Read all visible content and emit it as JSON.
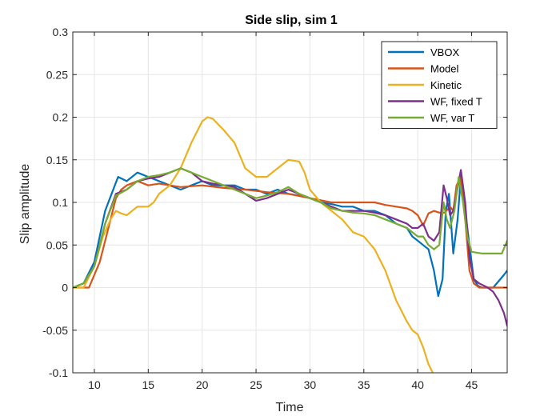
{
  "chart_data": {
    "type": "line",
    "title": "Side slip, sim 1",
    "xlabel": "Time",
    "ylabel": "Slip amplitude",
    "xlim": [
      8,
      48.3
    ],
    "ylim": [
      -0.1,
      0.3
    ],
    "xticks": [
      10,
      15,
      20,
      25,
      30,
      35,
      40,
      45
    ],
    "yticks": [
      -0.1,
      -0.05,
      0,
      0.05,
      0.1,
      0.15,
      0.2,
      0.25,
      0.3
    ],
    "grid": true,
    "legend_position": "top-right",
    "series": [
      {
        "name": "VBOX",
        "color": "#0072BD",
        "points": [
          [
            8,
            0
          ],
          [
            9,
            0.005
          ],
          [
            10,
            0.03
          ],
          [
            11,
            0.09
          ],
          [
            11.6,
            0.11
          ],
          [
            12.2,
            0.13
          ],
          [
            13,
            0.125
          ],
          [
            14,
            0.135
          ],
          [
            15,
            0.13
          ],
          [
            16,
            0.125
          ],
          [
            17,
            0.12
          ],
          [
            18,
            0.115
          ],
          [
            19,
            0.12
          ],
          [
            20,
            0.125
          ],
          [
            21,
            0.12
          ],
          [
            22,
            0.12
          ],
          [
            23,
            0.12
          ],
          [
            24,
            0.115
          ],
          [
            25,
            0.115
          ],
          [
            26,
            0.11
          ],
          [
            27,
            0.115
          ],
          [
            28,
            0.11
          ],
          [
            29,
            0.108
          ],
          [
            30,
            0.105
          ],
          [
            31,
            0.1
          ],
          [
            32,
            0.098
          ],
          [
            33,
            0.095
          ],
          [
            34,
            0.095
          ],
          [
            35,
            0.09
          ],
          [
            36,
            0.09
          ],
          [
            37,
            0.085
          ],
          [
            38,
            0.075
          ],
          [
            39,
            0.07
          ],
          [
            39.5,
            0.06
          ],
          [
            40,
            0.055
          ],
          [
            40.5,
            0.05
          ],
          [
            41,
            0.045
          ],
          [
            41.5,
            0.02
          ],
          [
            41.9,
            -0.01
          ],
          [
            42.3,
            0.01
          ],
          [
            42.6,
            0.09
          ],
          [
            42.9,
            0.11
          ],
          [
            43.3,
            0.04
          ],
          [
            43.7,
            0.08
          ],
          [
            44,
            0.13
          ],
          [
            44.4,
            0.09
          ],
          [
            44.8,
            0.05
          ],
          [
            45.2,
            0.01
          ],
          [
            45.6,
            0.002
          ],
          [
            46,
            0
          ],
          [
            47,
            0
          ],
          [
            48,
            0.015
          ],
          [
            48.3,
            0.02
          ]
        ]
      },
      {
        "name": "Model",
        "color": "#D95319",
        "points": [
          [
            8,
            0
          ],
          [
            9.5,
            0
          ],
          [
            10.5,
            0.03
          ],
          [
            11.5,
            0.08
          ],
          [
            12,
            0.105
          ],
          [
            12.5,
            0.115
          ],
          [
            13,
            0.12
          ],
          [
            14,
            0.125
          ],
          [
            15,
            0.12
          ],
          [
            16,
            0.122
          ],
          [
            18,
            0.118
          ],
          [
            20,
            0.12
          ],
          [
            22,
            0.117
          ],
          [
            24,
            0.115
          ],
          [
            26,
            0.112
          ],
          [
            28,
            0.11
          ],
          [
            30,
            0.105
          ],
          [
            32,
            0.1
          ],
          [
            34,
            0.1
          ],
          [
            36,
            0.1
          ],
          [
            37,
            0.097
          ],
          [
            38,
            0.095
          ],
          [
            39,
            0.093
          ],
          [
            39.5,
            0.09
          ],
          [
            40,
            0.085
          ],
          [
            40.5,
            0.073
          ],
          [
            41,
            0.087
          ],
          [
            41.5,
            0.09
          ],
          [
            42,
            0.088
          ],
          [
            42.5,
            0.088
          ],
          [
            43,
            0.095
          ],
          [
            43.3,
            0.09
          ],
          [
            43.6,
            0.12
          ],
          [
            44,
            0.13
          ],
          [
            44.4,
            0.08
          ],
          [
            44.8,
            0.02
          ],
          [
            45.2,
            0.005
          ],
          [
            45.7,
            0
          ],
          [
            46,
            0
          ],
          [
            47,
            0
          ],
          [
            48.3,
            0
          ]
        ]
      },
      {
        "name": "Kinetic",
        "color": "#EDB120",
        "points": [
          [
            8,
            0
          ],
          [
            9,
            0
          ],
          [
            10,
            0.025
          ],
          [
            10.8,
            0.06
          ],
          [
            11.5,
            0.08
          ],
          [
            12,
            0.09
          ],
          [
            12.5,
            0.087
          ],
          [
            13,
            0.085
          ],
          [
            13.5,
            0.09
          ],
          [
            14,
            0.095
          ],
          [
            15,
            0.095
          ],
          [
            15.5,
            0.1
          ],
          [
            16,
            0.11
          ],
          [
            17,
            0.12
          ],
          [
            18,
            0.14
          ],
          [
            19,
            0.17
          ],
          [
            20,
            0.195
          ],
          [
            20.5,
            0.2
          ],
          [
            21,
            0.198
          ],
          [
            22,
            0.185
          ],
          [
            23,
            0.17
          ],
          [
            24,
            0.14
          ],
          [
            25,
            0.13
          ],
          [
            26,
            0.13
          ],
          [
            27,
            0.14
          ],
          [
            28,
            0.15
          ],
          [
            29,
            0.148
          ],
          [
            29.5,
            0.135
          ],
          [
            30,
            0.115
          ],
          [
            31,
            0.1
          ],
          [
            32,
            0.09
          ],
          [
            33,
            0.08
          ],
          [
            34,
            0.065
          ],
          [
            35,
            0.06
          ],
          [
            36,
            0.045
          ],
          [
            37,
            0.02
          ],
          [
            38,
            -0.015
          ],
          [
            39,
            -0.04
          ],
          [
            39.5,
            -0.05
          ],
          [
            40,
            -0.055
          ],
          [
            40.5,
            -0.07
          ],
          [
            41,
            -0.09
          ],
          [
            41.4,
            -0.1
          ]
        ]
      },
      {
        "name": "WF, fixed T",
        "color": "#7E2F8E",
        "points": [
          [
            8,
            0
          ],
          [
            9,
            0.005
          ],
          [
            10,
            0.025
          ],
          [
            11,
            0.075
          ],
          [
            12,
            0.11
          ],
          [
            13,
            0.115
          ],
          [
            14,
            0.125
          ],
          [
            15,
            0.128
          ],
          [
            16,
            0.13
          ],
          [
            17,
            0.135
          ],
          [
            18,
            0.14
          ],
          [
            19,
            0.135
          ],
          [
            20,
            0.125
          ],
          [
            21,
            0.122
          ],
          [
            22,
            0.12
          ],
          [
            23,
            0.118
          ],
          [
            24,
            0.11
          ],
          [
            25,
            0.102
          ],
          [
            26,
            0.105
          ],
          [
            27,
            0.11
          ],
          [
            28,
            0.115
          ],
          [
            29,
            0.11
          ],
          [
            30,
            0.105
          ],
          [
            31,
            0.1
          ],
          [
            32,
            0.095
          ],
          [
            33,
            0.09
          ],
          [
            34,
            0.09
          ],
          [
            35,
            0.09
          ],
          [
            36,
            0.088
          ],
          [
            37,
            0.085
          ],
          [
            38,
            0.08
          ],
          [
            39,
            0.075
          ],
          [
            39.5,
            0.07
          ],
          [
            40,
            0.07
          ],
          [
            40.5,
            0.075
          ],
          [
            41,
            0.06
          ],
          [
            41.5,
            0.055
          ],
          [
            42,
            0.065
          ],
          [
            42.4,
            0.12
          ],
          [
            42.7,
            0.105
          ],
          [
            43,
            0.085
          ],
          [
            43.3,
            0.09
          ],
          [
            43.6,
            0.11
          ],
          [
            44,
            0.138
          ],
          [
            44.4,
            0.1
          ],
          [
            44.8,
            0.035
          ],
          [
            45.2,
            0.01
          ],
          [
            45.7,
            0.005
          ],
          [
            46.5,
            0
          ],
          [
            47,
            -0.005
          ],
          [
            47.5,
            -0.015
          ],
          [
            48,
            -0.03
          ],
          [
            48.3,
            -0.045
          ]
        ]
      },
      {
        "name": "WF, var T",
        "color": "#77AC30",
        "points": [
          [
            8,
            0
          ],
          [
            9,
            0.005
          ],
          [
            10,
            0.025
          ],
          [
            11,
            0.075
          ],
          [
            12,
            0.108
          ],
          [
            13,
            0.115
          ],
          [
            14,
            0.125
          ],
          [
            15,
            0.13
          ],
          [
            16,
            0.132
          ],
          [
            17,
            0.135
          ],
          [
            18,
            0.14
          ],
          [
            19,
            0.135
          ],
          [
            20,
            0.13
          ],
          [
            21,
            0.125
          ],
          [
            22,
            0.12
          ],
          [
            23,
            0.115
          ],
          [
            24,
            0.11
          ],
          [
            25,
            0.105
          ],
          [
            26,
            0.108
          ],
          [
            27,
            0.112
          ],
          [
            28,
            0.118
          ],
          [
            29,
            0.11
          ],
          [
            30,
            0.105
          ],
          [
            31,
            0.1
          ],
          [
            32,
            0.093
          ],
          [
            33,
            0.09
          ],
          [
            34,
            0.088
          ],
          [
            35,
            0.087
          ],
          [
            36,
            0.085
          ],
          [
            37,
            0.08
          ],
          [
            38,
            0.075
          ],
          [
            39,
            0.07
          ],
          [
            39.5,
            0.065
          ],
          [
            40,
            0.06
          ],
          [
            40.5,
            0.06
          ],
          [
            41,
            0.05
          ],
          [
            41.5,
            0.045
          ],
          [
            42,
            0.05
          ],
          [
            42.4,
            0.1
          ],
          [
            42.7,
            0.08
          ],
          [
            43,
            0.07
          ],
          [
            43.4,
            0.09
          ],
          [
            43.8,
            0.13
          ],
          [
            44.2,
            0.1
          ],
          [
            44.6,
            0.06
          ],
          [
            45,
            0.042
          ],
          [
            46,
            0.04
          ],
          [
            47,
            0.04
          ],
          [
            47.8,
            0.04
          ],
          [
            48.3,
            0.055
          ]
        ]
      }
    ]
  }
}
